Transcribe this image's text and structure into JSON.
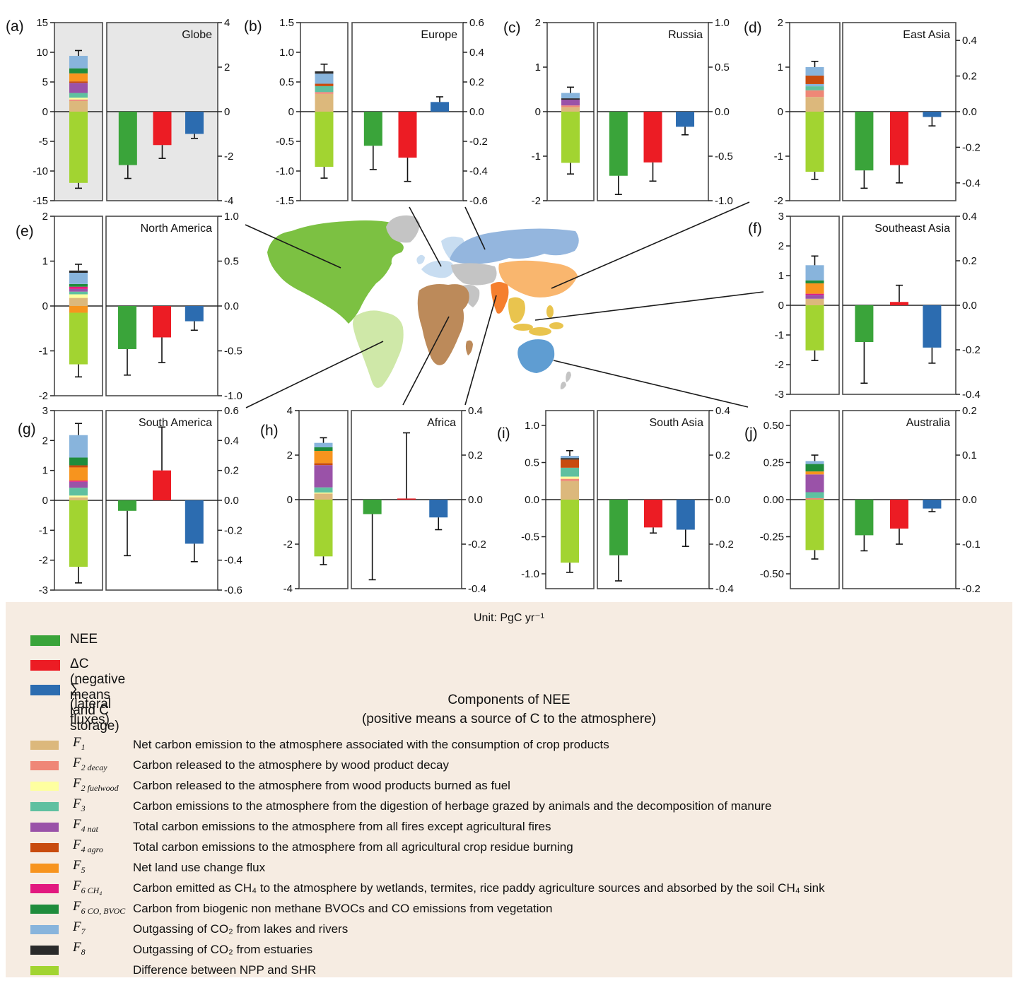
{
  "figure": {
    "unit": "Unit: PgC yr⁻¹"
  },
  "legend": {
    "main": [
      {
        "key": "nee",
        "label": "NEE",
        "color": "#3aa43a"
      },
      {
        "key": "dc",
        "label": "ΔC (negative means land C storage)",
        "color": "#ec1c24"
      },
      {
        "key": "sum",
        "label": "∑ (lateral fluxes)",
        "color": "#2c6cb0"
      }
    ],
    "components_title": "Components of NEE",
    "components_subtitle": "(positive means a source of C to the atmosphere)",
    "components": [
      {
        "key": "f1",
        "sym": "F",
        "sub": "1",
        "color": "#dcb87c",
        "desc": "Net carbon emission to the atmosphere associated with the consumption of crop products"
      },
      {
        "key": "f2_decay",
        "sym": "F",
        "sub": "2 decay",
        "color": "#ef8777",
        "desc": "Carbon released to the atmosphere by wood product decay"
      },
      {
        "key": "f2_fuelwood",
        "sym": "F",
        "sub": "2 fuelwood",
        "color": "#feffa0",
        "desc": "Carbon released to the atmosphere from wood products burned as fuel"
      },
      {
        "key": "f3",
        "sym": "F",
        "sub": "3",
        "color": "#5fc0a0",
        "desc": "Carbon emissions to the atmosphere from the digestion of herbage grazed by animals and the decomposition of manure"
      },
      {
        "key": "f4_nat",
        "sym": "F",
        "sub": "4 nat",
        "color": "#9a52a8",
        "desc": "Total carbon emissions to the atmosphere from all fires except agricultural fires"
      },
      {
        "key": "f4_agro",
        "sym": "F",
        "sub": "4 agro",
        "color": "#c84b0e",
        "desc": "Total carbon emissions to the atmosphere from all agricultural crop residue burning"
      },
      {
        "key": "f5",
        "sym": "F",
        "sub": "5",
        "color": "#f7941e",
        "desc": "Net land use change flux"
      },
      {
        "key": "f6_ch4",
        "sym": "F",
        "sub": "6 CH₄",
        "color": "#e2197f",
        "desc": "Carbon emitted as CH₄ to the atmosphere by wetlands, termites, rice paddy agriculture sources and absorbed by the soil CH₄ sink"
      },
      {
        "key": "f6_co_bvoc",
        "sym": "F",
        "sub": "6 CO, BVOC",
        "color": "#1f8c3c",
        "desc": "Carbon from biogenic non methane BVOCs and CO emissions from vegetation"
      },
      {
        "key": "f7",
        "sym": "F",
        "sub": "7",
        "color": "#88b4dc",
        "desc": "Outgassing of CO₂ from lakes and rivers"
      },
      {
        "key": "f8",
        "sym": "F",
        "sub": "8",
        "color": "#2a2a2a",
        "desc": "Outgassing of CO₂ from estuaries"
      },
      {
        "key": "npp_shr",
        "sym": "",
        "sub": "",
        "color": "#a2d431",
        "desc": "Difference between NPP and SHR"
      }
    ]
  },
  "map": {
    "colors": {
      "north_america": "#7cc142",
      "greenland": "#c4c4c4",
      "south_america": "#cfe8a8",
      "europe": "#c8ddf1",
      "russia": "#94b6de",
      "central_asia": "#c4c4c4",
      "middle_east": "#c4c4c4",
      "africa": "#bc8a5a",
      "east_asia": "#f9b66e",
      "south_asia": "#f57f2e",
      "se_asia": "#e9c44e",
      "australia": "#5f9dd2",
      "new_zealand": "#c4c4c4"
    }
  },
  "chart_data": {
    "type": "bar",
    "unit": "PgC yr⁻¹",
    "bar_series_order": [
      "NEE",
      "ΔC",
      "∑"
    ],
    "panels": [
      {
        "id": "a",
        "tag": "(a)",
        "region": "Globe",
        "bg": "#e7e7e7",
        "left": {
          "min": -15,
          "max": 15,
          "ticks": [
            "15",
            "10",
            "5",
            "0",
            "-5",
            "-10",
            "-15"
          ]
        },
        "right": {
          "min": -4,
          "max": 4,
          "ticks": [
            "4",
            "2",
            "0",
            "-2",
            "-4"
          ]
        },
        "stack_pos": [
          [
            "f1",
            1.8
          ],
          [
            "f2_decay",
            0.25
          ],
          [
            "f2_fuelwood",
            0.3
          ],
          [
            "f3",
            0.8
          ],
          [
            "f4_nat",
            1.7
          ],
          [
            "f4_agro",
            0.25
          ],
          [
            "f5",
            1.35
          ],
          [
            "f6_co_bvoc",
            0.85
          ],
          [
            "f7",
            2.1
          ]
        ],
        "stack_neg": [
          [
            "npp_shr",
            -12.0
          ]
        ],
        "stack_err": [
          10.3,
          -12.9
        ],
        "bars": [
          {
            "v": -2.4,
            "e": -3.0
          },
          {
            "v": -1.5,
            "e": -2.1
          },
          {
            "v": -1.0,
            "e": -1.2
          }
        ]
      },
      {
        "id": "b",
        "tag": "(b)",
        "region": "Europe",
        "bg": "#ffffff",
        "left": {
          "min": -1.5,
          "max": 1.5,
          "ticks": [
            "1.5",
            "1.0",
            "0.5",
            "0",
            "-0.5",
            "-1.0",
            "-1.5"
          ]
        },
        "right": {
          "min": -0.6,
          "max": 0.6,
          "ticks": [
            "0.6",
            "0.4",
            "0.2",
            "0.0",
            "-0.2",
            "-0.4",
            "-0.6"
          ]
        },
        "stack_pos": [
          [
            "f1",
            0.3
          ],
          [
            "f2_decay",
            0.03
          ],
          [
            "f3",
            0.1
          ],
          [
            "f4_agro",
            0.04
          ],
          [
            "f7",
            0.17
          ],
          [
            "f8",
            0.04
          ]
        ],
        "stack_neg": [
          [
            "npp_shr",
            -0.93
          ]
        ],
        "stack_err": [
          0.8,
          -1.12
        ],
        "bars": [
          {
            "v": -0.23,
            "e": -0.39
          },
          {
            "v": -0.31,
            "e": -0.47
          },
          {
            "v": 0.065,
            "e": 0.1
          }
        ]
      },
      {
        "id": "c",
        "tag": "(c)",
        "region": "Russia",
        "bg": "#ffffff",
        "left": {
          "min": -2,
          "max": 2,
          "ticks": [
            "2",
            "1",
            "0",
            "-1",
            "-2"
          ]
        },
        "right": {
          "min": -1,
          "max": 1,
          "ticks": [
            "1.0",
            "0.5",
            "0.0",
            "-0.5",
            "-1.0"
          ]
        },
        "stack_pos": [
          [
            "f1",
            0.1
          ],
          [
            "f2_decay",
            0.04
          ],
          [
            "f4_nat",
            0.13
          ],
          [
            "f8",
            0.03
          ],
          [
            "f7",
            0.12
          ]
        ],
        "stack_neg": [
          [
            "npp_shr",
            -1.15
          ]
        ],
        "stack_err": [
          0.55,
          -1.4
        ],
        "bars": [
          {
            "v": -0.72,
            "e": -0.93
          },
          {
            "v": -0.57,
            "e": -0.78
          },
          {
            "v": -0.17,
            "e": -0.26
          }
        ]
      },
      {
        "id": "d",
        "tag": "(d)",
        "region": "East Asia",
        "bg": "#ffffff",
        "left": {
          "min": -2,
          "max": 2,
          "ticks": [
            "2",
            "1",
            "0",
            "-1",
            "-2"
          ]
        },
        "right": {
          "min": -0.5,
          "max": 0.5,
          "ticks": [
            "0.4",
            "0.2",
            "0.0",
            "-0.2",
            "-0.4"
          ]
        },
        "stack_pos": [
          [
            "f1",
            0.33
          ],
          [
            "f2_decay",
            0.15
          ],
          [
            "f3",
            0.09
          ],
          [
            "f7",
            0.05
          ],
          [
            "f4_agro",
            0.19
          ],
          [
            "f7",
            0.19
          ]
        ],
        "stack_neg": [
          [
            "npp_shr",
            -1.35
          ]
        ],
        "stack_err": [
          1.13,
          -1.52
        ],
        "bars": [
          {
            "v": -0.33,
            "e": -0.43
          },
          {
            "v": -0.3,
            "e": -0.4
          },
          {
            "v": -0.03,
            "e": -0.08
          }
        ]
      },
      {
        "id": "e",
        "tag": "(e)",
        "region": "North America",
        "bg": "#ffffff",
        "left": {
          "min": -2,
          "max": 2,
          "ticks": [
            "2",
            "1",
            "0",
            "-1",
            "-2"
          ]
        },
        "right": {
          "min": -1,
          "max": 1,
          "ticks": [
            "1.0",
            "0.5",
            "0.0",
            "-0.5",
            "-1.0"
          ]
        },
        "stack_pos": [
          [
            "f1",
            0.18
          ],
          [
            "f2_fuelwood",
            0.08
          ],
          [
            "f3",
            0.06
          ],
          [
            "f4_nat",
            0.06
          ],
          [
            "f6_ch4",
            0.05
          ],
          [
            "f6_co_bvoc",
            0.06
          ],
          [
            "f7",
            0.25
          ],
          [
            "f8",
            0.05
          ]
        ],
        "stack_neg": [
          [
            "f5",
            -0.15
          ],
          [
            "npp_shr",
            -1.15
          ]
        ],
        "stack_err": [
          0.93,
          -1.58
        ],
        "bars": [
          {
            "v": -0.48,
            "e": -0.77
          },
          {
            "v": -0.35,
            "e": -0.63
          },
          {
            "v": -0.17,
            "e": -0.27
          }
        ]
      },
      {
        "id": "f",
        "tag": "(f)",
        "region": "Southeast Asia",
        "bg": "#ffffff",
        "left": {
          "min": -3,
          "max": 3,
          "ticks": [
            "3",
            "2",
            "1",
            "0",
            "-1",
            "-2",
            "-3"
          ]
        },
        "right": {
          "min": -0.4,
          "max": 0.4,
          "ticks": [
            "0.4",
            "0.2",
            "0.0",
            "-0.2",
            "-0.4"
          ]
        },
        "stack_pos": [
          [
            "f1",
            0.22
          ],
          [
            "f4_nat",
            0.13
          ],
          [
            "f6_ch4",
            0.04
          ],
          [
            "f5",
            0.35
          ],
          [
            "f6_co_bvoc",
            0.1
          ],
          [
            "f7",
            0.51
          ]
        ],
        "stack_neg": [
          [
            "npp_shr",
            -1.52
          ]
        ],
        "stack_err": [
          1.66,
          -1.86
        ],
        "bars": [
          {
            "v": -0.165,
            "e": -0.35
          },
          {
            "v": 0.015,
            "e": 0.09
          },
          {
            "v": -0.19,
            "e": -0.26
          }
        ]
      },
      {
        "id": "g",
        "tag": "(g)",
        "region": "South America",
        "bg": "#ffffff",
        "left": {
          "min": -3,
          "max": 3,
          "ticks": [
            "3",
            "2",
            "1",
            "0",
            "-1",
            "-2",
            "-3"
          ]
        },
        "right": {
          "min": -0.6,
          "max": 0.6,
          "ticks": [
            "0.6",
            "0.4",
            "0.2",
            "0.0",
            "-0.2",
            "-0.4",
            "-0.6"
          ]
        },
        "stack_pos": [
          [
            "f1",
            0.1
          ],
          [
            "f2_fuelwood",
            0.06
          ],
          [
            "f3",
            0.26
          ],
          [
            "f4_nat",
            0.2
          ],
          [
            "f6_ch4",
            0.04
          ],
          [
            "f5",
            0.44
          ],
          [
            "f4_agro",
            0.07
          ],
          [
            "f6_co_bvoc",
            0.26
          ],
          [
            "f7",
            0.75
          ]
        ],
        "stack_neg": [
          [
            "npp_shr",
            -2.22
          ]
        ],
        "stack_err": [
          2.57,
          -2.76
        ],
        "bars": [
          {
            "v": -0.07,
            "e": -0.37
          },
          {
            "v": 0.2,
            "e": 0.49
          },
          {
            "v": -0.29,
            "e": -0.41
          }
        ]
      },
      {
        "id": "h",
        "tag": "(h)",
        "region": "Africa",
        "bg": "#ffffff",
        "left": {
          "min": -4,
          "max": 4,
          "ticks": [
            "4",
            "2",
            "0",
            "-2",
            "-4"
          ]
        },
        "right": {
          "min": -0.4,
          "max": 0.4,
          "ticks": [
            "0.4",
            "0.2",
            "0.0",
            "-0.2",
            "-0.4"
          ]
        },
        "stack_pos": [
          [
            "f1",
            0.27
          ],
          [
            "f2_fuelwood",
            0.05
          ],
          [
            "f3",
            0.23
          ],
          [
            "f4_nat",
            1.0
          ],
          [
            "f4_agro",
            0.09
          ],
          [
            "f5",
            0.55
          ],
          [
            "f6_co_bvoc",
            0.16
          ],
          [
            "f7",
            0.2
          ]
        ],
        "stack_neg": [
          [
            "npp_shr",
            -2.55
          ]
        ],
        "stack_err": [
          2.78,
          -2.92
        ],
        "bars": [
          {
            "v": -0.065,
            "e": -0.36
          },
          {
            "v": 0.005,
            "e": 0.3
          },
          {
            "v": -0.08,
            "e": -0.135
          }
        ]
      },
      {
        "id": "i",
        "tag": "(i)",
        "region": "South Asia",
        "bg": "#ffffff",
        "left": {
          "min": -1.2,
          "max": 1.2,
          "ticks": [
            "1.0",
            "0.5",
            "0.0",
            "-0.5",
            "-1.0"
          ]
        },
        "right": {
          "min": -0.4,
          "max": 0.4,
          "ticks": [
            "0.4",
            "0.2",
            "0.0",
            "-0.2",
            "-0.4"
          ]
        },
        "stack_pos": [
          [
            "f1",
            0.25
          ],
          [
            "f2_decay",
            0.03
          ],
          [
            "f2_fuelwood",
            0.03
          ],
          [
            "f3",
            0.12
          ],
          [
            "f4_agro",
            0.11
          ],
          [
            "f8",
            0.02
          ],
          [
            "f7",
            0.03
          ]
        ],
        "stack_neg": [
          [
            "npp_shr",
            -0.85
          ]
        ],
        "stack_err": [
          0.66,
          -0.98
        ],
        "bars": [
          {
            "v": -0.25,
            "e": -0.365
          },
          {
            "v": -0.125,
            "e": -0.15
          },
          {
            "v": -0.135,
            "e": -0.21
          }
        ]
      },
      {
        "id": "j",
        "tag": "(j)",
        "region": "Australia",
        "bg": "#ffffff",
        "left": {
          "min": -0.6,
          "max": 0.6,
          "ticks": [
            "0.50",
            "0.25",
            "0.00",
            "-0.25",
            "-0.50"
          ]
        },
        "right": {
          "min": -0.2,
          "max": 0.2,
          "ticks": [
            "0.2",
            "0.1",
            "0.0",
            "-0.1",
            "-0.2"
          ]
        },
        "stack_pos": [
          [
            "f2_decay",
            0.01
          ],
          [
            "f3",
            0.04
          ],
          [
            "f4_nat",
            0.12
          ],
          [
            "f5",
            0.02
          ],
          [
            "f6_co_bvoc",
            0.05
          ],
          [
            "f7",
            0.02
          ]
        ],
        "stack_neg": [
          [
            "npp_shr",
            -0.34
          ]
        ],
        "stack_err": [
          0.3,
          -0.4
        ],
        "bars": [
          {
            "v": -0.08,
            "e": -0.115
          },
          {
            "v": -0.065,
            "e": -0.1
          },
          {
            "v": -0.02,
            "e": -0.027
          }
        ]
      }
    ]
  }
}
